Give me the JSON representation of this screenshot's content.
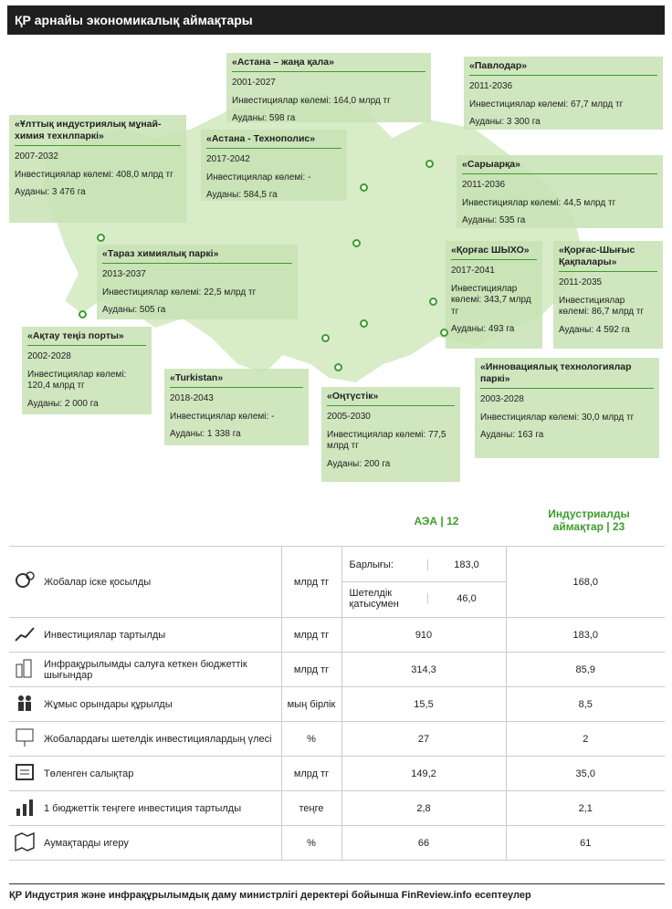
{
  "title": "ҚР арнайы экономикалық аймақтары",
  "cards": [
    {
      "title": "«Астана – жаңа қала»",
      "lines": [
        "2001-2027",
        "Инвестициялар көлемі: 164,0 млрд тг",
        "Ауданы: 598 га"
      ]
    },
    {
      "title": "«Павлодар»",
      "lines": [
        "2011-2036",
        "Инвестициялар көлемі: 67,7 млрд тг",
        "Ауданы: 3 300 га"
      ]
    },
    {
      "title": "«Ұлттық индустриялық мұнай-химия технлпаркі»",
      "lines": [
        "2007-2032",
        "Инвестициялар көлемі: 408,0 млрд тг",
        "Ауданы: 3 476 га"
      ]
    },
    {
      "title": "«Астана - Технополис»",
      "lines": [
        "2017-2042",
        "Инвестициялар көлемі: -",
        "Ауданы: 584,5 га"
      ]
    },
    {
      "title": "«Сарыарқа»",
      "lines": [
        "2011-2036",
        "Инвестициялар көлемі: 44,5 млрд тг",
        "Ауданы: 535 га"
      ]
    },
    {
      "title": "«Тараз химиялық паркі»",
      "lines": [
        "2013-2037",
        "Инвестициялар көлемі: 22,5 млрд тг",
        "Ауданы: 505 га"
      ]
    },
    {
      "title": "«Қорғас ШЫХО»",
      "lines": [
        "2017-2041",
        "Инвестициялар көлемі: 343,7 млрд тг",
        "Ауданы: 493 га"
      ]
    },
    {
      "title": "«Қорғас-Шығыс Қақпалары»",
      "lines": [
        "2011-2035",
        "Инвестициялар көлемі: 86,7 млрд тг",
        "Ауданы: 4 592 га"
      ]
    },
    {
      "title": "«Ақтау теңіз порты»",
      "lines": [
        "2002-2028",
        "Инвестициялар көлемі: 120,4 млрд тг",
        "Ауданы: 2 000 га"
      ]
    },
    {
      "title": "«Turkistan»",
      "lines": [
        "2018-2043",
        "Инвестициялар көлемі: -",
        "Ауданы: 1 338 га"
      ]
    },
    {
      "title": "«Оңтүстік»",
      "lines": [
        "2005-2030",
        "Инвестициялар көлемі: 77,5 млрд тг",
        "Ауданы: 200 га"
      ]
    },
    {
      "title": "«Инновациялық технологиялар паркі»",
      "lines": [
        "2003-2028",
        "Инвестициялар көлемі: 30,0 млрд тг",
        "Ауданы: 163 га"
      ]
    }
  ],
  "headers": {
    "aea": "АЭА | 12",
    "industrial": "Индустриалды аймақтар | 23"
  },
  "rows": [
    {
      "icon": "gears-icon",
      "label": "Жобалар іске қосылды",
      "unit": "млрд тг",
      "aea_sub": [
        {
          "label": "Барлығы:",
          "value": "183,0"
        },
        {
          "label": "Шетелдік қатысумен",
          "value": "46,0"
        }
      ],
      "ind": "168,0"
    },
    {
      "icon": "growth-chart-icon",
      "label": "Инвестициялар тартылды",
      "unit": "млрд тг",
      "aea": "910",
      "ind": "183,0"
    },
    {
      "icon": "buildings-icon",
      "label": "Инфрақұрылымды салуға кеткен бюджеттік шығындар",
      "unit": "млрд тг",
      "aea": "314,3",
      "ind": "85,9"
    },
    {
      "icon": "workers-icon",
      "label": "Жұмыс орындары құрылды",
      "unit": "мың бірлік",
      "aea": "15,5",
      "ind": "8,5"
    },
    {
      "icon": "presentation-icon",
      "label": "Жобалардағы шетелдік инвестициялардың үлесі",
      "unit": "%",
      "aea": "27",
      "ind": "2"
    },
    {
      "icon": "cash-register-icon",
      "label": "Төленген салықтар",
      "unit": "млрд тг",
      "aea": "149,2",
      "ind": "35,0"
    },
    {
      "icon": "bar-chart-icon",
      "label": "1 бюджеттік теңгеге инвестиция тартылды",
      "unit": "теңге",
      "aea": "2,8",
      "ind": "2,1"
    },
    {
      "icon": "map-icon",
      "label": "Аумақтарды игеру",
      "unit": "%",
      "aea": "66",
      "ind": "61"
    }
  ],
  "footer": "ҚР Индустрия және инфрақұрылымдық даму министрлігі деректері бойынша FinReview.info есептеулер",
  "colors": {
    "accent": "#3d9d2d",
    "card": "#c8e2b4",
    "map": "#d8ecc8"
  }
}
